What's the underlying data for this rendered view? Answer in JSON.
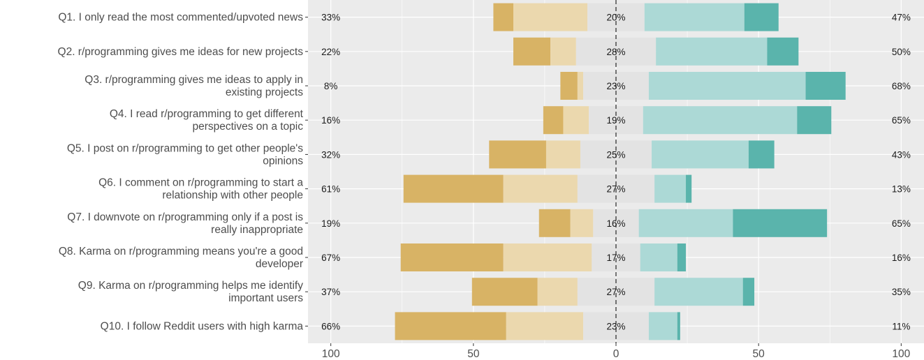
{
  "chart_data": {
    "type": "bar",
    "subtype": "diverging-stacked-likert",
    "title": "",
    "xlabel": "",
    "ylabel": "",
    "xlim": [
      -108,
      108
    ],
    "x_ticks": [
      -100,
      -50,
      0,
      50,
      100
    ],
    "x_tick_labels": [
      "100",
      "50",
      "0",
      "50",
      "100"
    ],
    "grid": true,
    "legend": "none",
    "colors": {
      "strongly_disagree": "#d8b365",
      "disagree": "#ebd8ae",
      "neutral": "#e3e3e3",
      "agree": "#acd9d6",
      "strongly_agree": "#5ab4ac",
      "panel_background": "#ebebeb",
      "gridline": "#ffffff",
      "zero_line": "#333333"
    },
    "categories": [
      "Q1. I only read the most commented/upvoted news",
      "Q2. r/programming gives me ideas for new projects",
      "Q3. r/programming gives me ideas to apply in existing projects",
      "Q4. I read r/programming to get different perspectives on a topic",
      "Q5. I post on r/programming to get other people's opinions",
      "Q6. I comment on r/programming to start a relationship with other people",
      "Q7. I downvote on r/programming only if a post is really inappropriate",
      "Q8. Karma on r/programming means you're a good developer",
      "Q9. Karma on r/programming helps me identify important users",
      "Q10.  I follow Reddit users with high karma"
    ],
    "category_lines": [
      [
        "Q1. I only read the most commented/upvoted news"
      ],
      [
        "Q2. r/programming gives me ideas for new projects"
      ],
      [
        "Q3. r/programming gives me ideas to apply in",
        "existing projects"
      ],
      [
        "Q4. I read r/programming to get different",
        "perspectives on a topic"
      ],
      [
        "Q5. I post on r/programming to get other people's",
        "opinions"
      ],
      [
        "Q6. I comment on r/programming to start a",
        "relationship with other people"
      ],
      [
        "Q7. I downvote on r/programming only if a post is",
        "really inappropriate"
      ],
      [
        "Q8. Karma on r/programming means you're a good",
        "developer"
      ],
      [
        "Q9. Karma on r/programming helps me identify",
        "important users"
      ],
      [
        "Q10.  I follow Reddit users with high karma"
      ]
    ],
    "series": [
      {
        "values": [
          7,
          13,
          6,
          7,
          20,
          35,
          11,
          36,
          23,
          39
        ]
      },
      {
        "values": [
          26,
          9,
          2,
          9,
          12,
          26,
          8,
          31,
          14,
          27
        ]
      },
      {
        "values": [
          20,
          28,
          23,
          19,
          25,
          27,
          16,
          17,
          27,
          23
        ]
      },
      {
        "values": [
          35,
          39,
          55,
          54,
          34,
          11,
          33,
          13,
          31,
          10
        ]
      },
      {
        "values": [
          12,
          11,
          14,
          12,
          9,
          2,
          33,
          3,
          4,
          1
        ]
      }
    ],
    "left_percent_labels": [
      "33%",
      "22%",
      "8%",
      "16%",
      "32%",
      "61%",
      "19%",
      "67%",
      "37%",
      "66%"
    ],
    "center_percent_labels": [
      "20%",
      "28%",
      "23%",
      "19%",
      "25%",
      "27%",
      "16%",
      "17%",
      "27%",
      "23%"
    ],
    "right_percent_labels": [
      "47%",
      "50%",
      "68%",
      "65%",
      "43%",
      "13%",
      "65%",
      "16%",
      "35%",
      "11%"
    ]
  }
}
